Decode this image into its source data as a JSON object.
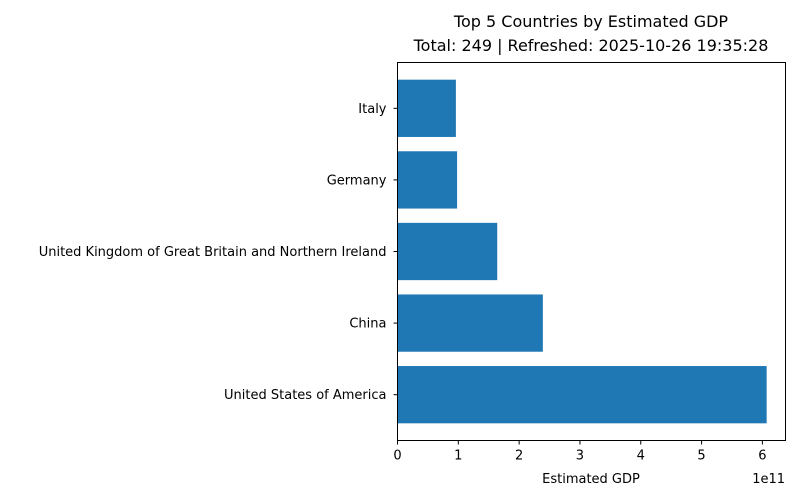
{
  "chart_data": {
    "type": "bar",
    "orientation": "horizontal",
    "title": "Top 5 Countries by Estimated GDP",
    "subtitle": "Total: 249 | Refreshed: 2025-10-26 19:35:28",
    "xlabel": "Estimated GDP",
    "ylabel": "",
    "x_offset_text": "1e11",
    "categories": [
      "United States of America",
      "China",
      "United Kingdom of Great Britain and Northern Ireland",
      "Germany",
      "Italy"
    ],
    "values": [
      607000000000,
      239000000000,
      164000000000,
      98000000000,
      96000000000
    ],
    "xlim": [
      0,
      638000000000
    ],
    "xticks": [
      0,
      100000000000,
      200000000000,
      300000000000,
      400000000000,
      500000000000,
      600000000000
    ],
    "xtick_labels": [
      "0",
      "1",
      "2",
      "3",
      "4",
      "5",
      "6"
    ],
    "grid": false,
    "legend": "none",
    "bar_color": "#1f77b4"
  }
}
